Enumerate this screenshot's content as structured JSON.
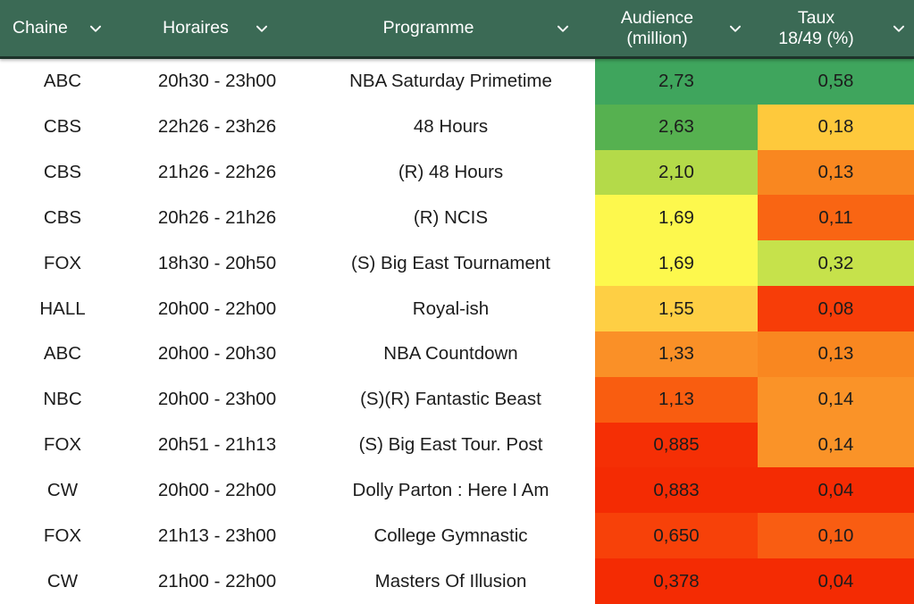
{
  "header": {
    "bg_color": "#3b6a55",
    "text_color": "#ffffff",
    "border_bottom_color": "#1d332a",
    "sort_icon": "chevron-down",
    "columns": [
      {
        "id": "chaine",
        "label": "Chaine"
      },
      {
        "id": "horaires",
        "label": "Horaires"
      },
      {
        "id": "programme",
        "label": "Programme"
      },
      {
        "id": "audience",
        "line1": "Audience",
        "line2": "(million)"
      },
      {
        "id": "taux",
        "line1": "Taux",
        "line2": "18/49 (%)"
      }
    ]
  },
  "chart_data": {
    "type": "table",
    "columns": [
      "Chaine",
      "Horaires",
      "Programme",
      "Audience (million)",
      "Taux 18/49 (%)"
    ],
    "heatmap_note": "Audience and Taux 18/49 columns use a green-yellow-orange-red heatmap scale (high=green, low=red)",
    "audience_values": [
      2.73,
      2.63,
      2.1,
      1.69,
      1.69,
      1.55,
      1.33,
      1.13,
      0.885,
      0.883,
      0.65,
      0.378
    ],
    "taux_values": [
      0.58,
      0.18,
      0.13,
      0.11,
      0.32,
      0.08,
      0.13,
      0.14,
      0.14,
      0.04,
      0.1,
      0.04
    ],
    "rows": [
      {
        "chaine": "ABC",
        "horaires": "20h30 - 23h00",
        "programme": "NBA Saturday Primetime",
        "audience": "2,73",
        "taux": "0,58",
        "audience_color": "#3fa55d",
        "taux_color": "#3fa55d"
      },
      {
        "chaine": "CBS",
        "horaires": "22h26 - 23h26",
        "programme": "48 Hours",
        "audience": "2,63",
        "taux": "0,18",
        "audience_color": "#56b150",
        "taux_color": "#fec93c"
      },
      {
        "chaine": "CBS",
        "horaires": "21h26 - 22h26",
        "programme": "(R) 48 Hours",
        "audience": "2,10",
        "taux": "0,13",
        "audience_color": "#b4da49",
        "taux_color": "#f98720"
      },
      {
        "chaine": "CBS",
        "horaires": "20h26 - 21h26",
        "programme": "(R) NCIS",
        "audience": "1,69",
        "taux": "0,11",
        "audience_color": "#fdf84d",
        "taux_color": "#f96513"
      },
      {
        "chaine": "FOX",
        "horaires": "18h30 - 20h50",
        "programme": "(S) Big East Tournament",
        "audience": "1,69",
        "taux": "0,32",
        "audience_color": "#fdf84d",
        "taux_color": "#c6e24b"
      },
      {
        "chaine": "HALL",
        "horaires": "20h00 - 22h00",
        "programme": "Royal-ish",
        "audience": "1,55",
        "taux": "0,08",
        "audience_color": "#fecf44",
        "taux_color": "#f73d08"
      },
      {
        "chaine": "ABC",
        "horaires": "20h00 - 20h30",
        "programme": "NBA Countdown",
        "audience": "1,33",
        "taux": "0,13",
        "audience_color": "#fa9027",
        "taux_color": "#f98720"
      },
      {
        "chaine": "NBC",
        "horaires": "20h00 - 23h00",
        "programme": "(S)(R) Fantastic Beast",
        "audience": "1,13",
        "taux": "0,14",
        "audience_color": "#f95d10",
        "taux_color": "#fa9328"
      },
      {
        "chaine": "FOX",
        "horaires": "20h51 - 21h13",
        "programme": "(S) Big East Tour. Post",
        "audience": "0,885",
        "taux": "0,14",
        "audience_color": "#f52f05",
        "taux_color": "#fa9328"
      },
      {
        "chaine": "CW",
        "horaires": "20h00 - 22h00",
        "programme": "Dolly Parton : Here I Am",
        "audience": "0,883",
        "taux": "0,04",
        "audience_color": "#f42b03",
        "taux_color": "#f42b03"
      },
      {
        "chaine": "FOX",
        "horaires": "21h13 - 23h00",
        "programme": "College Gymnastic",
        "audience": "0,650",
        "taux": "0,10",
        "audience_color": "#f74109",
        "taux_color": "#f95d12"
      },
      {
        "chaine": "CW",
        "horaires": "21h00 - 22h00",
        "programme": "Masters Of Illusion",
        "audience": "0,378",
        "taux": "0,04",
        "audience_color": "#f42b03",
        "taux_color": "#f42b03"
      }
    ]
  }
}
